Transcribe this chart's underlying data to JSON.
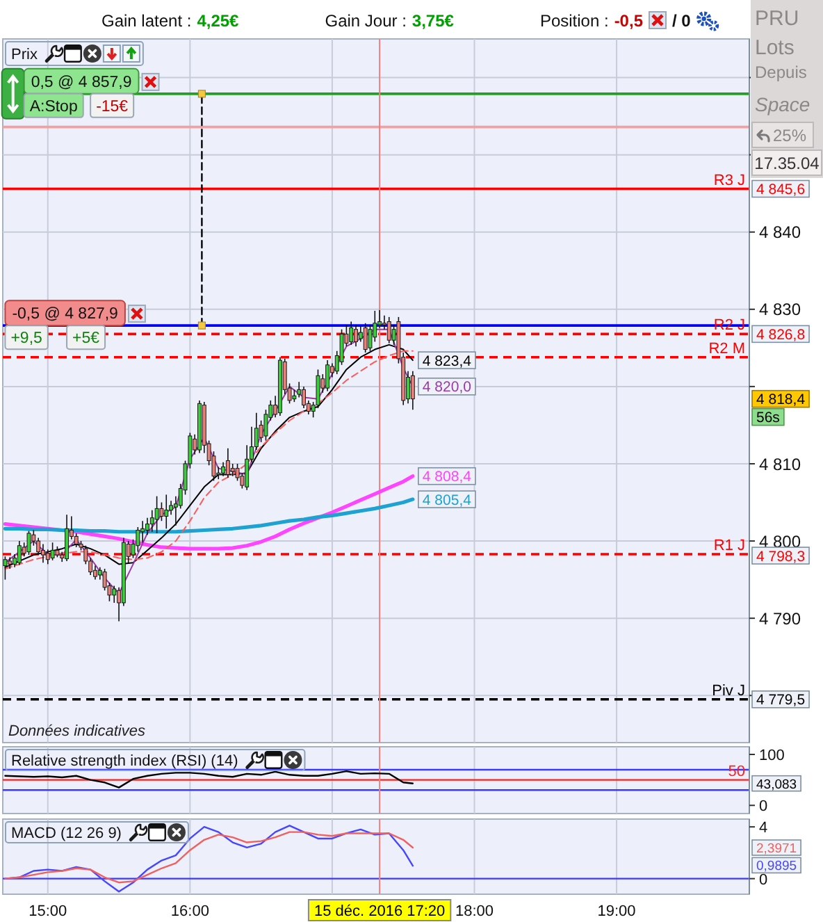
{
  "chart_data": [
    {
      "type": "other",
      "annotations": [
        "Gain latent :",
        "4,25€",
        "Gain Jour :",
        "3,75€",
        "Position :",
        "-0,5",
        "/ 0"
      ],
      "colors": [
        "#111111",
        "#00a000",
        "#111111",
        "#00a000",
        "#111111",
        "#cc0000",
        "#111111"
      ]
    },
    {
      "type": "other",
      "annotations": [
        "PRU",
        "Lots",
        "Depuis",
        "Space",
        "25%",
        "17.35.04"
      ]
    },
    {
      "type": "candlestick",
      "title": "Prix",
      "x": [
        "2016-12-15T14:42",
        "2016-12-15T14:44",
        "2016-12-15T14:46",
        "2016-12-15T14:48",
        "2016-12-15T14:50",
        "2016-12-15T14:52",
        "2016-12-15T14:54",
        "2016-12-15T14:56",
        "2016-12-15T14:58",
        "2016-12-15T15:00",
        "2016-12-15T15:02",
        "2016-12-15T15:04",
        "2016-12-15T15:06",
        "2016-12-15T15:08",
        "2016-12-15T15:10",
        "2016-12-15T15:12",
        "2016-12-15T15:14",
        "2016-12-15T15:16",
        "2016-12-15T15:18",
        "2016-12-15T15:20",
        "2016-12-15T15:22",
        "2016-12-15T15:24",
        "2016-12-15T15:26",
        "2016-12-15T15:28",
        "2016-12-15T15:30",
        "2016-12-15T15:32",
        "2016-12-15T15:34",
        "2016-12-15T15:36",
        "2016-12-15T15:38",
        "2016-12-15T15:40",
        "2016-12-15T15:42",
        "2016-12-15T15:44",
        "2016-12-15T15:46",
        "2016-12-15T15:48",
        "2016-12-15T15:50",
        "2016-12-15T15:52",
        "2016-12-15T15:54",
        "2016-12-15T15:56",
        "2016-12-15T15:58",
        "2016-12-15T16:00",
        "2016-12-15T16:02",
        "2016-12-15T16:04",
        "2016-12-15T16:06",
        "2016-12-15T16:08",
        "2016-12-15T16:10",
        "2016-12-15T16:12",
        "2016-12-15T16:14",
        "2016-12-15T16:16",
        "2016-12-15T16:18",
        "2016-12-15T16:20",
        "2016-12-15T16:22",
        "2016-12-15T16:24",
        "2016-12-15T16:26",
        "2016-12-15T16:28",
        "2016-12-15T16:30",
        "2016-12-15T16:32",
        "2016-12-15T16:34",
        "2016-12-15T16:36",
        "2016-12-15T16:38",
        "2016-12-15T16:40",
        "2016-12-15T16:42",
        "2016-12-15T16:44",
        "2016-12-15T16:46",
        "2016-12-15T16:48",
        "2016-12-15T16:50",
        "2016-12-15T16:52",
        "2016-12-15T16:54",
        "2016-12-15T16:56",
        "2016-12-15T16:58",
        "2016-12-15T17:00",
        "2016-12-15T17:02",
        "2016-12-15T17:04",
        "2016-12-15T17:06",
        "2016-12-15T17:08",
        "2016-12-15T17:10",
        "2016-12-15T17:12",
        "2016-12-15T17:14",
        "2016-12-15T17:16",
        "2016-12-15T17:18",
        "2016-12-15T17:20",
        "2016-12-15T17:22",
        "2016-12-15T17:24",
        "2016-12-15T17:26",
        "2016-12-15T17:28",
        "2016-12-15T17:30",
        "2016-12-15T17:32",
        "2016-12-15T17:34"
      ],
      "ohlc": [
        [
          4796.8,
          4798.0,
          4795.0,
          4797.6
        ],
        [
          4797.4,
          4797.9,
          4796.4,
          4797.0
        ],
        [
          4797.0,
          4798.3,
          4796.6,
          4797.8
        ],
        [
          4797.2,
          4800.0,
          4796.9,
          4799.4
        ],
        [
          4799.2,
          4799.8,
          4798.0,
          4798.4
        ],
        [
          4798.6,
          4801.3,
          4798.2,
          4801.0
        ],
        [
          4800.8,
          4801.4,
          4799.4,
          4800.0
        ],
        [
          4800.0,
          4800.4,
          4798.2,
          4798.6
        ],
        [
          4798.8,
          4799.6,
          4797.2,
          4798.2
        ],
        [
          4798.4,
          4798.9,
          4797.0,
          4797.6
        ],
        [
          4797.8,
          4799.8,
          4797.5,
          4798.8
        ],
        [
          4798.8,
          4799.3,
          4797.9,
          4798.2
        ],
        [
          4798.2,
          4798.6,
          4797.3,
          4797.8
        ],
        [
          4797.7,
          4803.4,
          4797.4,
          4801.6
        ],
        [
          4801.4,
          4803.2,
          4800.2,
          4800.6
        ],
        [
          4800.6,
          4801.0,
          4799.2,
          4799.6
        ],
        [
          4799.6,
          4800.0,
          4798.8,
          4799.2
        ],
        [
          4799.0,
          4799.4,
          4797.0,
          4797.4
        ],
        [
          4797.4,
          4797.8,
          4795.6,
          4796.0
        ],
        [
          4796.2,
          4796.8,
          4795.0,
          4795.4
        ],
        [
          4795.6,
          4796.6,
          4795.0,
          4796.2
        ],
        [
          4796.0,
          4796.4,
          4793.6,
          4794.0
        ],
        [
          4794.2,
          4794.6,
          4792.2,
          4793.0
        ],
        [
          4793.0,
          4794.2,
          4792.0,
          4793.8
        ],
        [
          4793.6,
          4794.0,
          4789.6,
          4792.0
        ],
        [
          4792.0,
          4800.4,
          4791.6,
          4799.8
        ],
        [
          4799.6,
          4800.0,
          4797.2,
          4798.0
        ],
        [
          4798.2,
          4800.2,
          4797.8,
          4799.6
        ],
        [
          4799.4,
          4801.8,
          4798.6,
          4801.4
        ],
        [
          4801.2,
          4802.6,
          4799.8,
          4801.6
        ],
        [
          4801.4,
          4803.0,
          4800.8,
          4802.2
        ],
        [
          4802.2,
          4804.0,
          4801.2,
          4803.0
        ],
        [
          4802.8,
          4805.8,
          4801.0,
          4804.2
        ],
        [
          4804.2,
          4805.0,
          4802.6,
          4803.2
        ],
        [
          4803.2,
          4806.0,
          4801.6,
          4804.0
        ],
        [
          4804.0,
          4805.2,
          4803.4,
          4804.6
        ],
        [
          4804.4,
          4805.8,
          4802.0,
          4804.8
        ],
        [
          4804.6,
          4807.4,
          4804.2,
          4806.8
        ],
        [
          4806.6,
          4810.4,
          4806.0,
          4810.0
        ],
        [
          4810.0,
          4814.0,
          4809.4,
          4813.6
        ],
        [
          4813.2,
          4813.8,
          4811.2,
          4811.8
        ],
        [
          4811.8,
          4818.2,
          4811.4,
          4817.8
        ],
        [
          4817.6,
          4818.0,
          4811.4,
          4812.4
        ],
        [
          4812.6,
          4813.0,
          4809.8,
          4810.4
        ],
        [
          4811.0,
          4811.6,
          4807.8,
          4808.4
        ],
        [
          4808.6,
          4809.6,
          4808.0,
          4808.8
        ],
        [
          4808.8,
          4810.2,
          4808.4,
          4809.6
        ],
        [
          4810.4,
          4812.0,
          4808.2,
          4808.6
        ],
        [
          4809.4,
          4810.0,
          4808.4,
          4809.0
        ],
        [
          4809.4,
          4810.0,
          4807.8,
          4808.2
        ],
        [
          4808.4,
          4808.8,
          4806.8,
          4807.2
        ],
        [
          4807.0,
          4812.4,
          4806.6,
          4810.6
        ],
        [
          4810.6,
          4814.8,
          4810.2,
          4812.2
        ],
        [
          4812.2,
          4816.6,
          4811.8,
          4814.6
        ],
        [
          4815.0,
          4815.6,
          4812.8,
          4813.4
        ],
        [
          4813.6,
          4817.0,
          4813.0,
          4816.4
        ],
        [
          4816.0,
          4818.2,
          4815.6,
          4817.6
        ],
        [
          4817.6,
          4818.8,
          4816.0,
          4816.4
        ],
        [
          4816.6,
          4823.8,
          4816.2,
          4823.4
        ],
        [
          4823.2,
          4823.6,
          4819.0,
          4819.6
        ],
        [
          4819.8,
          4820.4,
          4817.8,
          4818.2
        ],
        [
          4818.4,
          4819.6,
          4818.0,
          4818.8
        ],
        [
          4819.0,
          4820.6,
          4818.6,
          4819.6
        ],
        [
          4819.6,
          4820.0,
          4817.2,
          4817.6
        ],
        [
          4817.8,
          4818.2,
          4816.4,
          4816.8
        ],
        [
          4816.8,
          4818.0,
          4816.0,
          4817.6
        ],
        [
          4817.6,
          4822.2,
          4817.2,
          4821.4
        ],
        [
          4821.0,
          4821.6,
          4819.2,
          4819.8
        ],
        [
          4819.8,
          4823.4,
          4819.4,
          4822.8
        ],
        [
          4822.6,
          4823.0,
          4821.2,
          4821.8
        ],
        [
          4822.0,
          4824.6,
          4821.6,
          4824.0
        ],
        [
          4823.2,
          4827.4,
          4822.8,
          4826.8
        ],
        [
          4826.8,
          4828.0,
          4825.2,
          4825.6
        ],
        [
          4825.8,
          4828.4,
          4825.4,
          4827.6
        ],
        [
          4827.4,
          4828.0,
          4825.2,
          4825.8
        ],
        [
          4826.2,
          4827.8,
          4825.8,
          4827.0
        ],
        [
          4827.6,
          4828.2,
          4824.4,
          4824.8
        ],
        [
          4825.0,
          4828.0,
          4824.6,
          4827.4
        ],
        [
          4826.4,
          4829.8,
          4825.8,
          4828.2
        ],
        [
          4828.0,
          4829.9,
          4827.6,
          4828.4
        ],
        [
          4828.2,
          4829.2,
          4827.4,
          4828.0
        ],
        [
          4828.4,
          4829.0,
          4825.6,
          4826.0
        ],
        [
          4826.0,
          4828.0,
          4825.4,
          4827.4
        ],
        [
          4828.4,
          4829.0,
          4823.0,
          4823.6
        ],
        [
          4823.8,
          4824.4,
          4817.6,
          4818.2
        ],
        [
          4818.4,
          4822.0,
          4817.8,
          4821.2
        ],
        [
          4821.4,
          4822.0,
          4817.0,
          4818.4
        ]
      ],
      "colors": [
        "#3ccc3c",
        "#e8807a",
        "#3ccc3c",
        "#3ccc3c",
        "#e8807a",
        "#3ccc3c",
        "#e8807a",
        "#e8807a",
        "#e8807a",
        "#e8807a",
        "#3ccc3c",
        "#e8807a",
        "#e8807a",
        "#3ccc3c",
        "#e8807a",
        "#e8807a",
        "#e8807a",
        "#e8807a",
        "#e8807a",
        "#e8807a",
        "#3ccc3c",
        "#e8807a",
        "#e8807a",
        "#3ccc3c",
        "#e8807a",
        "#3ccc3c",
        "#e8807a",
        "#3ccc3c",
        "#3ccc3c",
        "#3ccc3c",
        "#3ccc3c",
        "#3ccc3c",
        "#3ccc3c",
        "#e8807a",
        "#3ccc3c",
        "#3ccc3c",
        "#3ccc3c",
        "#3ccc3c",
        "#3ccc3c",
        "#3ccc3c",
        "#e8807a",
        "#3ccc3c",
        "#e8807a",
        "#e8807a",
        "#e8807a",
        "#3ccc3c",
        "#3ccc3c",
        "#e8807a",
        "#e8807a",
        "#e8807a",
        "#e8807a",
        "#3ccc3c",
        "#3ccc3c",
        "#3ccc3c",
        "#e8807a",
        "#3ccc3c",
        "#3ccc3c",
        "#e8807a",
        "#3ccc3c",
        "#e8807a",
        "#e8807a",
        "#3ccc3c",
        "#3ccc3c",
        "#e8807a",
        "#e8807a",
        "#3ccc3c",
        "#3ccc3c",
        "#e8807a",
        "#3ccc3c",
        "#e8807a",
        "#3ccc3c",
        "#3ccc3c",
        "#e8807a",
        "#3ccc3c",
        "#e8807a",
        "#3ccc3c",
        "#e8807a",
        "#3ccc3c",
        "#3ccc3c",
        "#3ccc3c",
        "#e8807a",
        "#e8807a",
        "#3ccc3c",
        "#e8807a",
        "#e8807a",
        "#3ccc3c",
        "#e8807a"
      ],
      "value_labels": [
        null,
        null,
        null,
        null,
        null,
        null,
        null,
        null,
        null,
        null,
        null,
        null,
        null,
        null,
        null,
        null,
        null,
        null,
        null,
        null,
        null,
        null,
        null,
        null,
        null,
        null,
        null,
        null,
        null,
        null,
        null,
        null,
        null,
        null,
        null,
        null,
        null,
        null,
        null,
        null,
        null,
        null,
        null,
        null,
        null,
        null,
        null,
        null,
        null,
        null,
        null,
        null,
        null,
        null,
        null,
        null,
        null,
        null,
        null,
        null,
        null,
        null,
        null,
        null,
        null,
        null,
        null,
        null,
        null,
        null,
        null,
        null,
        null,
        null,
        null,
        null,
        null,
        null,
        null,
        null,
        null,
        null,
        null,
        null,
        null,
        null,
        "4 818,4"
      ],
      "series": [
        {
          "type": "line",
          "color": "#ff44ff",
          "x": [
            "2016-12-15T14:42",
            "2016-12-15T14:48",
            "2016-12-15T14:54",
            "2016-12-15T15:00",
            "2016-12-15T15:06",
            "2016-12-15T15:12",
            "2016-12-15T15:18",
            "2016-12-15T15:24",
            "2016-12-15T15:30",
            "2016-12-15T15:36",
            "2016-12-15T15:42",
            "2016-12-15T15:48",
            "2016-12-15T15:54",
            "2016-12-15T16:00",
            "2016-12-15T16:06",
            "2016-12-15T16:12",
            "2016-12-15T16:18",
            "2016-12-15T16:24",
            "2016-12-15T16:30",
            "2016-12-15T16:36",
            "2016-12-15T16:42",
            "2016-12-15T16:48",
            "2016-12-15T16:54",
            "2016-12-15T17:00",
            "2016-12-15T17:06",
            "2016-12-15T17:12",
            "2016-12-15T17:18",
            "2016-12-15T17:24",
            "2016-12-15T17:30",
            "2016-12-15T17:34"
          ],
          "values": [
            4802.2,
            4802.0,
            4801.8,
            4801.6,
            4801.4,
            4801.2,
            4800.9,
            4800.6,
            4800.3,
            4799.9,
            4799.5,
            4799.2,
            4799.1,
            4799.0,
            4799.0,
            4799.0,
            4799.1,
            4799.4,
            4799.9,
            4800.6,
            4801.5,
            4802.3,
            4803.0,
            4803.7,
            4804.5,
            4805.3,
            4806.1,
            4806.9,
            4807.7,
            4808.4
          ],
          "value_labels": [
            null,
            null,
            null,
            null,
            null,
            null,
            null,
            null,
            null,
            null,
            null,
            null,
            null,
            null,
            null,
            null,
            null,
            null,
            null,
            null,
            null,
            null,
            null,
            null,
            null,
            null,
            null,
            null,
            null,
            "4 808,4"
          ]
        },
        {
          "type": "line",
          "color": "#1ea2d2",
          "x": [
            "2016-12-15T14:42",
            "2016-12-15T14:48",
            "2016-12-15T14:54",
            "2016-12-15T15:00",
            "2016-12-15T15:06",
            "2016-12-15T15:12",
            "2016-12-15T15:18",
            "2016-12-15T15:24",
            "2016-12-15T15:30",
            "2016-12-15T15:36",
            "2016-12-15T15:42",
            "2016-12-15T15:48",
            "2016-12-15T15:54",
            "2016-12-15T16:00",
            "2016-12-15T16:06",
            "2016-12-15T16:12",
            "2016-12-15T16:18",
            "2016-12-15T16:24",
            "2016-12-15T16:30",
            "2016-12-15T16:36",
            "2016-12-15T16:42",
            "2016-12-15T16:48",
            "2016-12-15T16:54",
            "2016-12-15T17:00",
            "2016-12-15T17:06",
            "2016-12-15T17:12",
            "2016-12-15T17:18",
            "2016-12-15T17:24",
            "2016-12-15T17:30",
            "2016-12-15T17:34"
          ],
          "values": [
            4801.6,
            4801.6,
            4801.5,
            4801.5,
            4801.4,
            4801.4,
            4801.3,
            4801.3,
            4801.2,
            4801.2,
            4801.2,
            4801.2,
            4801.2,
            4801.3,
            4801.4,
            4801.5,
            4801.6,
            4801.8,
            4802.0,
            4802.3,
            4802.6,
            4802.8,
            4803.1,
            4803.3,
            4803.6,
            4803.9,
            4804.2,
            4804.6,
            4805.0,
            4805.4
          ],
          "value_labels": [
            null,
            null,
            null,
            null,
            null,
            null,
            null,
            null,
            null,
            null,
            null,
            null,
            null,
            null,
            null,
            null,
            null,
            null,
            null,
            null,
            null,
            null,
            null,
            null,
            null,
            null,
            null,
            null,
            null,
            "4 805,4"
          ]
        },
        {
          "type": "line",
          "color": "#000000",
          "x": [
            "2016-12-15T14:42",
            "2016-12-15T14:48",
            "2016-12-15T14:54",
            "2016-12-15T15:00",
            "2016-12-15T15:06",
            "2016-12-15T15:12",
            "2016-12-15T15:18",
            "2016-12-15T15:24",
            "2016-12-15T15:30",
            "2016-12-15T15:36",
            "2016-12-15T15:42",
            "2016-12-15T15:48",
            "2016-12-15T15:54",
            "2016-12-15T16:00",
            "2016-12-15T16:06",
            "2016-12-15T16:12",
            "2016-12-15T16:18",
            "2016-12-15T16:24",
            "2016-12-15T16:30",
            "2016-12-15T16:36",
            "2016-12-15T16:42",
            "2016-12-15T16:48",
            "2016-12-15T16:54",
            "2016-12-15T17:00",
            "2016-12-15T17:06",
            "2016-12-15T17:12",
            "2016-12-15T17:18",
            "2016-12-15T17:24",
            "2016-12-15T17:30",
            "2016-12-15T17:34"
          ],
          "values": [
            4796.6,
            4797.4,
            4798.2,
            4798.6,
            4799.0,
            4799.6,
            4799.0,
            4798.2,
            4797.0,
            4797.2,
            4798.8,
            4800.4,
            4802.2,
            4804.6,
            4807.0,
            4808.6,
            4808.6,
            4808.8,
            4812.0,
            4814.2,
            4816.0,
            4816.8,
            4817.4,
            4819.6,
            4822.2,
            4823.8,
            4824.8,
            4825.4,
            4824.8,
            4823.4
          ],
          "value_labels": [
            null,
            null,
            null,
            null,
            null,
            null,
            null,
            null,
            null,
            null,
            null,
            null,
            null,
            null,
            null,
            null,
            null,
            null,
            null,
            null,
            null,
            null,
            null,
            null,
            null,
            null,
            null,
            null,
            null,
            "4 823,4"
          ]
        },
        {
          "type": "line",
          "color": "#9a3aa8",
          "x": [
            "2016-12-15T14:42",
            "2016-12-15T14:48",
            "2016-12-15T14:54",
            "2016-12-15T15:00",
            "2016-12-15T15:06",
            "2016-12-15T15:12",
            "2016-12-15T15:18",
            "2016-12-15T15:24",
            "2016-12-15T15:30",
            "2016-12-15T15:36",
            "2016-12-15T15:42",
            "2016-12-15T15:48",
            "2016-12-15T15:54",
            "2016-12-15T16:00",
            "2016-12-15T16:06",
            "2016-12-15T16:12",
            "2016-12-15T16:18",
            "2016-12-15T16:24",
            "2016-12-15T16:30",
            "2016-12-15T16:36",
            "2016-12-15T16:42",
            "2016-12-15T16:48",
            "2016-12-15T16:54",
            "2016-12-15T17:00",
            "2016-12-15T17:06",
            "2016-12-15T17:12",
            "2016-12-15T17:18",
            "2016-12-15T17:24",
            "2016-12-15T17:30",
            "2016-12-15T17:34"
          ],
          "values": [
            4797.2,
            4798.6,
            4800.0,
            4798.2,
            4798.2,
            4800.2,
            4797.8,
            4795.2,
            4793.2,
            4797.0,
            4801.0,
            4803.4,
            4804.4,
            4810.6,
            4813.4,
            4809.4,
            4809.0,
            4808.6,
            4813.8,
            4816.8,
            4820.0,
            4818.6,
            4818.4,
            4821.6,
            4825.2,
            4826.2,
            4827.4,
            4827.4,
            4822.4,
            4820.0
          ],
          "value_labels": [
            null,
            null,
            null,
            null,
            null,
            null,
            null,
            null,
            null,
            null,
            null,
            null,
            null,
            null,
            null,
            null,
            null,
            null,
            null,
            null,
            null,
            null,
            null,
            null,
            null,
            null,
            null,
            null,
            null,
            "4 820,0"
          ]
        },
        {
          "type": "line",
          "color": "#ff5a5a",
          "line_style": "dashed",
          "x": [
            "2016-12-15T14:42",
            "2016-12-15T14:48",
            "2016-12-15T14:54",
            "2016-12-15T15:00",
            "2016-12-15T15:06",
            "2016-12-15T15:12",
            "2016-12-15T15:18",
            "2016-12-15T15:24",
            "2016-12-15T15:30",
            "2016-12-15T15:36",
            "2016-12-15T15:42",
            "2016-12-15T15:48",
            "2016-12-15T15:54",
            "2016-12-15T16:00",
            "2016-12-15T16:06",
            "2016-12-15T16:12",
            "2016-12-15T16:18",
            "2016-12-15T16:24",
            "2016-12-15T16:30",
            "2016-12-15T16:36",
            "2016-12-15T16:42",
            "2016-12-15T16:48",
            "2016-12-15T16:54",
            "2016-12-15T17:00",
            "2016-12-15T17:06",
            "2016-12-15T17:12",
            "2016-12-15T17:18",
            "2016-12-15T17:24",
            "2016-12-15T17:30",
            "2016-12-15T17:34"
          ],
          "values": [
            4796.4,
            4797.0,
            4797.6,
            4798.0,
            4798.4,
            4798.6,
            4798.6,
            4798.2,
            4797.8,
            4797.6,
            4797.8,
            4798.6,
            4800.0,
            4802.6,
            4805.6,
            4807.6,
            4808.6,
            4810.0,
            4812.2,
            4814.0,
            4815.6,
            4816.8,
            4817.8,
            4819.2,
            4820.8,
            4822.0,
            4823.2,
            4824.0,
            4824.6,
            4824.6
          ]
        },
        {
          "type": "line",
          "color": "#000000",
          "line_style": "dashed",
          "marker": "square",
          "colors": [
            "#f5c842",
            "#f5c842"
          ],
          "x": [
            "2016-12-15T16:05",
            "2016-12-15T16:05"
          ],
          "values": [
            4827.9,
            4857.9
          ]
        }
      ],
      "xlim": [
        "2016-12-15T14:41",
        "2016-12-15T19:56"
      ],
      "xticks": [
        {
          "value": "2016-12-15T15:00",
          "label": null
        },
        {
          "value": "2016-12-15T16:00",
          "label": null
        },
        {
          "value": "2016-12-15T17:00",
          "label": null
        },
        {
          "value": "2016-12-15T18:00",
          "label": null
        },
        {
          "value": "2016-12-15T19:00",
          "label": null
        }
      ],
      "ylim": [
        4773.9,
        4865
      ],
      "yticks": [
        {
          "value": 4780,
          "label": null
        },
        {
          "value": 4790,
          "label": "4 790"
        },
        {
          "value": 4800,
          "label": "4 800"
        },
        {
          "value": 4810,
          "label": "4 810"
        },
        {
          "value": 4820,
          "label": null
        },
        {
          "value": 4830,
          "label": "4 830"
        },
        {
          "value": 4840,
          "label": "4 840"
        },
        {
          "value": 4850,
          "label": null
        },
        {
          "value": 4860,
          "label": null
        }
      ],
      "tick_labels": "y",
      "grid": true,
      "ref_lines": [
        {
          "axis": "y",
          "value": 4857.9,
          "color": "#22a022",
          "line_style": "solid"
        },
        {
          "axis": "y",
          "value": 4853.6,
          "color": "#f4a0a0",
          "line_style": "solid"
        },
        {
          "axis": "y",
          "value": 4845.6,
          "label": "R3 J",
          "color": "#ff0000",
          "line_style": "solid"
        },
        {
          "axis": "y",
          "value": 4827.9,
          "color": "#0000ff",
          "line_style": "solid"
        },
        {
          "axis": "y",
          "value": 4826.8,
          "label": "R2 J",
          "color": "#ff0000",
          "line_style": "dashed"
        },
        {
          "axis": "y",
          "value": 4823.8,
          "label": "R2 M",
          "color": "#ff0000",
          "line_style": "dashed"
        },
        {
          "axis": "y",
          "value": 4798.3,
          "label": "R1 J",
          "color": "#ff0000",
          "line_style": "dashed"
        },
        {
          "axis": "y",
          "value": 4779.5,
          "label": "Piv J",
          "color": "#000000",
          "line_style": "dashed"
        },
        {
          "axis": "x",
          "value": "2016-12-15T17:20",
          "color": "#f08080",
          "line_style": "solid"
        }
      ],
      "annotations": [
        "Données indicatives",
        "56s",
        {
          "text": "0,5 @ 4 857,9",
          "x": "2016-12-15T14:50",
          "y": 4857.9
        },
        {
          "text": "A:Stop",
          "x": "2016-12-15T14:50",
          "y": 4857.9
        },
        {
          "text": "-15€",
          "x": "2016-12-15T15:18",
          "y": 4857.9
        },
        {
          "text": "-0,5 @ 4 827,9",
          "x": "2016-12-15T14:42",
          "y": 4827.9
        },
        {
          "text": "+9,5",
          "x": "2016-12-15T14:42",
          "y": 4827.9
        },
        {
          "text": "+5€",
          "x": "2016-12-15T15:08",
          "y": 4827.9
        },
        {
          "text": "4 845,6",
          "x": "2016-12-15T19:56",
          "y": 4845.6
        },
        {
          "text": "4 826,8",
          "x": "2016-12-15T19:56",
          "y": 4826.8
        },
        {
          "text": "4 798,3",
          "x": "2016-12-15T19:56",
          "y": 4798.3
        },
        {
          "text": "4 779,5",
          "x": "2016-12-15T19:56",
          "y": 4779.5
        }
      ]
    },
    {
      "type": "line",
      "title": "Relative strength index (RSI) (14)",
      "x": [
        "2016-12-15T14:42",
        "2016-12-15T14:48",
        "2016-12-15T14:54",
        "2016-12-15T15:00",
        "2016-12-15T15:06",
        "2016-12-15T15:12",
        "2016-12-15T15:18",
        "2016-12-15T15:24",
        "2016-12-15T15:30",
        "2016-12-15T15:36",
        "2016-12-15T15:42",
        "2016-12-15T15:48",
        "2016-12-15T15:54",
        "2016-12-15T16:00",
        "2016-12-15T16:06",
        "2016-12-15T16:12",
        "2016-12-15T16:18",
        "2016-12-15T16:24",
        "2016-12-15T16:30",
        "2016-12-15T16:36",
        "2016-12-15T16:42",
        "2016-12-15T16:48",
        "2016-12-15T16:54",
        "2016-12-15T17:00",
        "2016-12-15T17:06",
        "2016-12-15T17:12",
        "2016-12-15T17:18",
        "2016-12-15T17:24",
        "2016-12-15T17:30",
        "2016-12-15T17:34"
      ],
      "series": [
        {
          "color": "#000000",
          "values": [
            58,
            57,
            56,
            57,
            55,
            58,
            50,
            45,
            35,
            52,
            58,
            62,
            64,
            64,
            62,
            58,
            56,
            62,
            60,
            66,
            60,
            58,
            58,
            62,
            67,
            62,
            63,
            62,
            45,
            43.083
          ]
        }
      ],
      "xlim": [
        "2016-12-15T14:41",
        "2016-12-15T19:56"
      ],
      "xticks": [
        {
          "value": "2016-12-15T15:00",
          "label": null
        },
        {
          "value": "2016-12-15T16:00",
          "label": null
        },
        {
          "value": "2016-12-15T17:00",
          "label": null
        },
        {
          "value": "2016-12-15T18:00",
          "label": null
        },
        {
          "value": "2016-12-15T19:00",
          "label": null
        }
      ],
      "ylim": [
        -16,
        115
      ],
      "yticks": [
        0,
        100
      ],
      "tick_labels": "y",
      "grid": "x",
      "ref_lines": [
        {
          "axis": "y",
          "value": 70,
          "color": "#3a3aff",
          "line_style": "solid"
        },
        {
          "axis": "y",
          "value": 50,
          "label": "50",
          "color": "#ff2020",
          "line_style": "solid"
        },
        {
          "axis": "y",
          "value": 30,
          "color": "#3a3aff",
          "line_style": "solid"
        },
        {
          "axis": "x",
          "value": "2016-12-15T17:20",
          "color": "#f08080",
          "line_style": "solid"
        }
      ],
      "annotations": [
        {
          "text": "43,083",
          "y": 43.083
        }
      ]
    },
    {
      "type": "line",
      "title": "MACD (12 26 9)",
      "x": [
        "2016-12-15T14:42",
        "2016-12-15T14:48",
        "2016-12-15T14:54",
        "2016-12-15T15:00",
        "2016-12-15T15:06",
        "2016-12-15T15:12",
        "2016-12-15T15:18",
        "2016-12-15T15:24",
        "2016-12-15T15:30",
        "2016-12-15T15:36",
        "2016-12-15T15:42",
        "2016-12-15T15:48",
        "2016-12-15T15:54",
        "2016-12-15T16:00",
        "2016-12-15T16:06",
        "2016-12-15T16:12",
        "2016-12-15T16:18",
        "2016-12-15T16:24",
        "2016-12-15T16:30",
        "2016-12-15T16:36",
        "2016-12-15T16:42",
        "2016-12-15T16:48",
        "2016-12-15T16:54",
        "2016-12-15T17:00",
        "2016-12-15T17:06",
        "2016-12-15T17:12",
        "2016-12-15T17:18",
        "2016-12-15T17:24",
        "2016-12-15T17:30",
        "2016-12-15T17:34"
      ],
      "series": [
        {
          "color": "#4646ff",
          "values": [
            0,
            0.1,
            0.6,
            0.7,
            0.6,
            0.9,
            0.7,
            -0.2,
            -1.0,
            -0.3,
            0.7,
            1.4,
            1.8,
            3.1,
            4.0,
            3.6,
            2.8,
            2.4,
            2.7,
            3.6,
            4.1,
            3.6,
            3.1,
            3.1,
            3.5,
            3.8,
            3.4,
            3.5,
            2.2,
            0.9895
          ]
        },
        {
          "color": "#f06060",
          "values": [
            0,
            0.1,
            0.3,
            0.5,
            0.6,
            0.8,
            0.7,
            0.1,
            -0.3,
            -0.2,
            0.3,
            0.8,
            1.2,
            2.2,
            3.0,
            3.4,
            3.2,
            2.8,
            2.9,
            3.2,
            3.6,
            3.6,
            3.4,
            3.3,
            3.5,
            3.5,
            3.5,
            3.5,
            3.0,
            2.3971
          ]
        }
      ],
      "xlim": [
        "2016-12-15T14:41",
        "2016-12-15T19:56"
      ],
      "xticks": [
        {
          "value": "2016-12-15T15:00",
          "label": "15:00"
        },
        {
          "value": "2016-12-15T16:00",
          "label": "16:00"
        },
        {
          "value": "2016-12-15T17:00",
          "label": null
        },
        {
          "value": "2016-12-15T18:00",
          "label": "18:00"
        },
        {
          "value": "2016-12-15T19:00",
          "label": "19:00"
        }
      ],
      "ylim": [
        -1.2,
        4.6
      ],
      "yticks": [
        0,
        4
      ],
      "grid": "x",
      "ref_lines": [
        {
          "axis": "y",
          "value": 0,
          "color": "#3a3aff",
          "line_style": "solid"
        },
        {
          "axis": "x",
          "value": "2016-12-15T17:20",
          "label": "15 déc. 2016 17:20",
          "color": "#f08080",
          "line_style": "solid"
        }
      ],
      "annotations": [
        {
          "text": "2,3971",
          "y": 2.3971
        },
        {
          "text": "0,9895",
          "y": 0.9895
        }
      ]
    }
  ]
}
